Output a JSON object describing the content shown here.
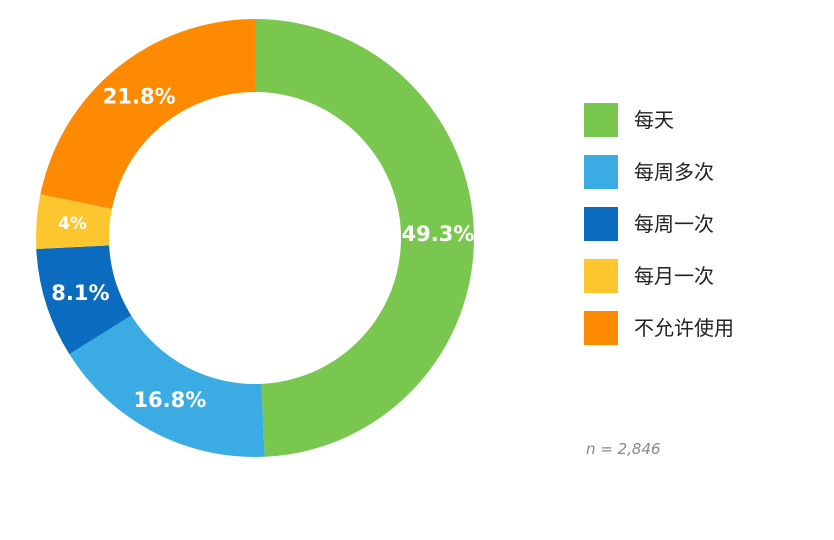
{
  "chart_data": {
    "type": "pie",
    "style": "donut",
    "slices": [
      {
        "label": "每天",
        "value": 49.3,
        "display": "49.3%",
        "color": "#7ac74f"
      },
      {
        "label": "每周多次",
        "value": 16.8,
        "display": "16.8%",
        "color": "#3aace3"
      },
      {
        "label": "每周一次",
        "value": 8.1,
        "display": "8.1%",
        "color": "#0b6cbf"
      },
      {
        "label": "每月一次",
        "value": 4,
        "display": "4%",
        "color": "#fec62e"
      },
      {
        "label": "不允许使用",
        "value": 21.8,
        "display": "21.8%",
        "color": "#fe8a02"
      }
    ],
    "legend_position": "right",
    "sample_size": "n = 2,846"
  }
}
